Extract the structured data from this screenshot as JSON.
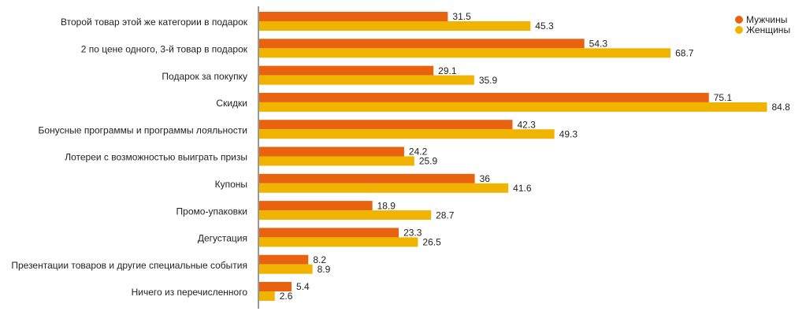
{
  "chart_data": {
    "type": "bar",
    "orientation": "horizontal",
    "categories": [
      "Второй товар этой же категории в подарок",
      "2 по цене одного, 3-й товар в подарок",
      "Подарок за покупку",
      "Скидки",
      "Бонусные программы и программы лояльности",
      "Лотереи с возможностью выиграть призы",
      "Купоны",
      "Промо-упаковки",
      "Дегустация",
      "Презентации товаров и другие специальные события",
      "Ничего из перечисленного"
    ],
    "series": [
      {
        "name": "Мужчины",
        "color": "#E8620F",
        "values": [
          31.5,
          54.3,
          29.1,
          75.1,
          42.3,
          24.2,
          36,
          18.9,
          23.3,
          8.2,
          5.4
        ],
        "labels": [
          "31.5",
          "54.3",
          "29.1",
          "75.1",
          "42.3",
          "24.2",
          "36",
          "18.9",
          "23.3",
          "8.2",
          "5.4"
        ]
      },
      {
        "name": "Женщины",
        "color": "#F0B400",
        "values": [
          45.3,
          68.7,
          35.9,
          84.8,
          49.3,
          25.9,
          41.6,
          28.7,
          26.5,
          8.9,
          2.6
        ],
        "labels": [
          "45.3",
          "68.7",
          "35.9",
          "84.8",
          "49.3",
          "25.9",
          "41.6",
          "28.7",
          "26.5",
          "8.9",
          "2.6"
        ]
      }
    ],
    "xlim": [
      0,
      86
    ],
    "grid": false,
    "legend_position": "top-right",
    "title": "",
    "xlabel": "",
    "ylabel": ""
  }
}
